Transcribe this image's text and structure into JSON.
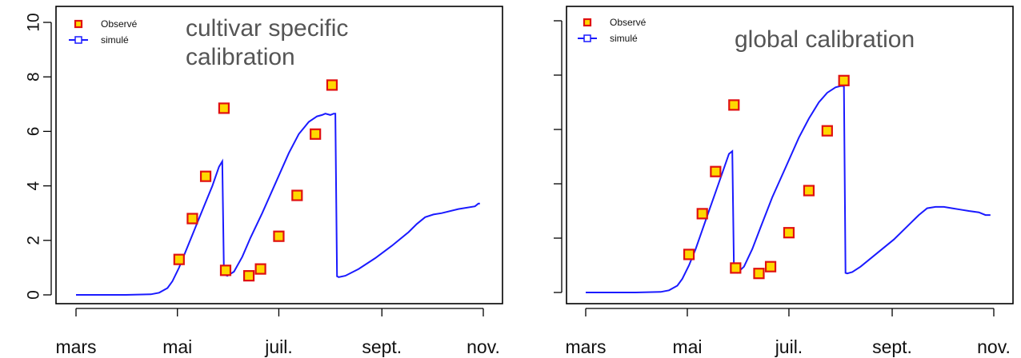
{
  "chart_data": [
    {
      "type": "scatter+line",
      "annotation_lines": [
        "cultivar specific",
        "calibration"
      ],
      "legend": [
        "Observé",
        "simulé"
      ],
      "x_axis_labels": [
        "mars",
        "mai",
        "juil.",
        "sept.",
        "nov."
      ],
      "x_axis_ticks": [
        0,
        61,
        122,
        184,
        245
      ],
      "ylim": [
        0,
        10
      ],
      "y_ticks": [
        "0",
        "2",
        "4",
        "6",
        "8",
        "10"
      ],
      "colors": {
        "observed_fill": "#ffd800",
        "observed_edge": "#e01010",
        "simulated": "#1a1aff"
      },
      "series": [
        {
          "name": "Observé",
          "kind": "points",
          "x": [
            62,
            70,
            78,
            89,
            90,
            104,
            111,
            122,
            133,
            144,
            154
          ],
          "y": [
            1.3,
            2.8,
            4.35,
            6.85,
            0.9,
            0.7,
            0.95,
            2.15,
            3.65,
            5.9,
            7.7
          ]
        },
        {
          "name": "simulé",
          "kind": "line",
          "x": [
            0,
            30,
            45,
            50,
            55,
            58,
            62,
            66,
            70,
            74,
            78,
            82,
            86,
            88,
            89,
            91,
            95,
            100,
            105,
            112,
            120,
            128,
            134,
            140,
            145,
            148,
            150,
            153,
            155,
            156,
            157,
            158,
            162,
            170,
            180,
            190,
            200,
            205,
            210,
            215,
            220,
            230,
            240,
            242,
            243
          ],
          "y": [
            0,
            0,
            0.02,
            0.08,
            0.25,
            0.5,
            1.0,
            1.6,
            2.2,
            2.8,
            3.4,
            4.0,
            4.7,
            4.9,
            0.75,
            0.7,
            0.85,
            1.4,
            2.1,
            3.0,
            4.1,
            5.2,
            5.9,
            6.35,
            6.55,
            6.6,
            6.65,
            6.6,
            6.65,
            6.65,
            0.68,
            0.65,
            0.7,
            0.95,
            1.35,
            1.8,
            2.3,
            2.6,
            2.85,
            2.95,
            3.0,
            3.15,
            3.25,
            3.35,
            3.35
          ]
        }
      ]
    },
    {
      "type": "scatter+line",
      "annotation_lines": [
        "global calibration"
      ],
      "legend": [
        "Observé",
        "simulé"
      ],
      "x_axis_labels": [
        "mars",
        "mai",
        "juil.",
        "sept.",
        "nov."
      ],
      "x_axis_ticks": [
        0,
        61,
        122,
        184,
        245
      ],
      "ylim": [
        0,
        10
      ],
      "y_ticks": [
        "0",
        "2",
        "4",
        "6",
        "8",
        "10"
      ],
      "colors": {
        "observed_fill": "#ffd800",
        "observed_edge": "#e01010",
        "simulated": "#1a1aff"
      },
      "series": [
        {
          "name": "Observé",
          "kind": "points",
          "x": [
            62,
            70,
            78,
            89,
            90,
            104,
            111,
            122,
            134,
            145,
            155
          ],
          "y": [
            1.4,
            2.9,
            4.45,
            6.9,
            0.9,
            0.7,
            0.95,
            2.2,
            3.75,
            5.95,
            7.8
          ]
        },
        {
          "name": "simulé",
          "kind": "line",
          "x": [
            0,
            30,
            45,
            50,
            55,
            58,
            62,
            66,
            70,
            74,
            78,
            82,
            86,
            88,
            89,
            91,
            95,
            100,
            105,
            112,
            120,
            128,
            134,
            140,
            145,
            150,
            153,
            155,
            156,
            157,
            160,
            165,
            175,
            185,
            195,
            200,
            205,
            210,
            215,
            220,
            225,
            230,
            236,
            240,
            243
          ],
          "y": [
            0,
            0,
            0.02,
            0.08,
            0.25,
            0.5,
            1.0,
            1.6,
            2.3,
            3.0,
            3.7,
            4.4,
            5.1,
            5.2,
            0.75,
            0.72,
            0.95,
            1.6,
            2.4,
            3.5,
            4.6,
            5.7,
            6.4,
            7.0,
            7.35,
            7.55,
            7.6,
            7.6,
            0.72,
            0.7,
            0.75,
            0.95,
            1.45,
            1.95,
            2.55,
            2.85,
            3.1,
            3.15,
            3.15,
            3.1,
            3.05,
            3.0,
            2.95,
            2.85,
            2.85
          ]
        }
      ]
    }
  ]
}
